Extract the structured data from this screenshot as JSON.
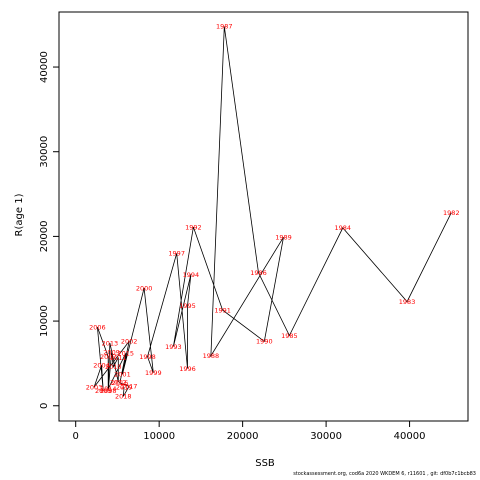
{
  "footer": {
    "source": "stockassessment.org,  cod6a  2020  WKDEM  6,  r11601  ,  git:  df0b7c1bcb83"
  },
  "chart_data": {
    "type": "line",
    "title": "",
    "xlabel": "SSB",
    "ylabel": "R(age 1)",
    "xlim": [
      -2000,
      47000
    ],
    "ylim": [
      -1800,
      46500
    ],
    "xticks": [
      0,
      10000,
      20000,
      30000,
      40000
    ],
    "xtick_labels": [
      "0",
      "10000",
      "20000",
      "30000",
      "40000"
    ],
    "yticks": [
      0,
      10000,
      20000,
      30000,
      40000
    ],
    "ytick_labels": [
      "0",
      "10000",
      "20000",
      "30000",
      "40000"
    ],
    "grid": false,
    "line_color": "#000000",
    "label_color": "#ff0000",
    "series": [
      {
        "points": [
          {
            "year": "1982",
            "x": 45000,
            "y": 22800
          },
          {
            "year": "1983",
            "x": 39700,
            "y": 12300
          },
          {
            "year": "1984",
            "x": 32000,
            "y": 21000
          },
          {
            "year": "1985",
            "x": 25600,
            "y": 8300
          },
          {
            "year": "1986",
            "x": 21900,
            "y": 15700
          },
          {
            "year": "1987",
            "x": 17800,
            "y": 44800
          },
          {
            "year": "1988",
            "x": 16200,
            "y": 5900
          },
          {
            "year": "1989",
            "x": 24900,
            "y": 19900
          },
          {
            "year": "1990",
            "x": 22600,
            "y": 7600
          },
          {
            "year": "1991",
            "x": 17600,
            "y": 11300
          },
          {
            "year": "1992",
            "x": 14100,
            "y": 21100
          },
          {
            "year": "1993",
            "x": 11700,
            "y": 7000
          },
          {
            "year": "1994",
            "x": 13800,
            "y": 15500
          },
          {
            "year": "1995",
            "x": 13400,
            "y": 11800
          },
          {
            "year": "1996",
            "x": 13400,
            "y": 4400
          },
          {
            "year": "1997",
            "x": 12100,
            "y": 18000
          },
          {
            "year": "1998",
            "x": 8600,
            "y": 5800
          },
          {
            "year": "1999",
            "x": 9300,
            "y": 3900
          },
          {
            "year": "2000",
            "x": 8200,
            "y": 13900
          },
          {
            "year": "2001",
            "x": 5600,
            "y": 3700
          },
          {
            "year": "2002",
            "x": 6400,
            "y": 7600
          },
          {
            "year": "2003",
            "x": 2200,
            "y": 2200
          },
          {
            "year": "2004",
            "x": 3100,
            "y": 4800
          },
          {
            "year": "2005",
            "x": 3300,
            "y": 1800
          },
          {
            "year": "2006",
            "x": 2600,
            "y": 9300
          },
          {
            "year": "2007",
            "x": 3900,
            "y": 5800
          },
          {
            "year": "2008",
            "x": 3900,
            "y": 1800
          },
          {
            "year": "2009",
            "x": 4300,
            "y": 6300
          },
          {
            "year": "2010",
            "x": 4500,
            "y": 4600
          },
          {
            "year": "2011",
            "x": 5100,
            "y": 5700
          },
          {
            "year": "2012",
            "x": 5100,
            "y": 2800
          },
          {
            "year": "2013",
            "x": 4100,
            "y": 7400
          },
          {
            "year": "2014",
            "x": 3900,
            "y": 2000
          },
          {
            "year": "2015",
            "x": 6000,
            "y": 6200
          },
          {
            "year": "2016",
            "x": 5300,
            "y": 2700
          },
          {
            "year": "2017",
            "x": 6400,
            "y": 2300
          },
          {
            "year": "2018",
            "x": 5700,
            "y": 1100
          },
          {
            "year": "2019",
            "x": 5800,
            "y": 2200
          }
        ]
      }
    ]
  }
}
